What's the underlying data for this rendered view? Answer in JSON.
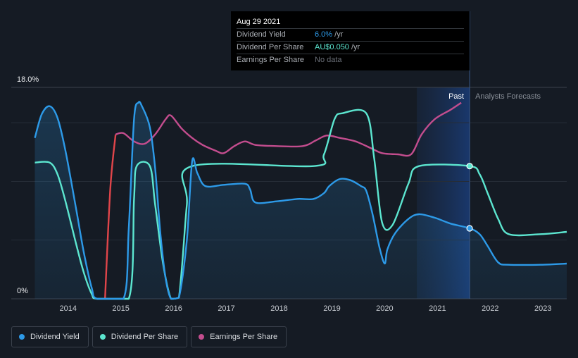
{
  "tooltip": {
    "date": "Aug 29 2021",
    "rows": [
      {
        "label": "Dividend Yield",
        "value": "6.0%",
        "suffix": " /yr",
        "color": "#2d9ae8"
      },
      {
        "label": "Dividend Per Share",
        "value": "AU$0.050",
        "suffix": " /yr",
        "color": "#5ce6d0"
      },
      {
        "label": "Earnings Per Share",
        "value": "No data",
        "suffix": "",
        "color": "#6b7079"
      }
    ]
  },
  "region_labels": {
    "past": "Past",
    "forecast": "Analysts Forecasts"
  },
  "legend": [
    {
      "label": "Dividend Yield",
      "color": "#2d9ae8"
    },
    {
      "label": "Dividend Per Share",
      "color": "#5ce6d0"
    },
    {
      "label": "Earnings Per Share",
      "color": "#c34d8e"
    }
  ],
  "chart_data": {
    "type": "line",
    "x_range": [
      2013.4,
      2023.5
    ],
    "ylim": [
      0,
      18
    ],
    "y_ticks": [
      {
        "value": 0,
        "label": "0%"
      },
      {
        "value": 18,
        "label": "18.0%"
      }
    ],
    "x_ticks": [
      "2014",
      "2015",
      "2016",
      "2017",
      "2018",
      "2019",
      "2020",
      "2021",
      "2022",
      "2023"
    ],
    "forecast_start": 2021.66,
    "past_band_start": 2020.66,
    "grid": true,
    "series": [
      {
        "name": "Dividend Yield",
        "color": "#2d9ae8",
        "fill": true,
        "points": [
          [
            2013.42,
            13.7
          ],
          [
            2013.55,
            15.7
          ],
          [
            2013.7,
            16.4
          ],
          [
            2013.85,
            15.4
          ],
          [
            2014.0,
            12.6
          ],
          [
            2014.2,
            7.7
          ],
          [
            2014.35,
            3.9
          ],
          [
            2014.5,
            0.9
          ],
          [
            2014.6,
            0.0
          ],
          [
            2015.1,
            0.0
          ],
          [
            2015.2,
            6.0
          ],
          [
            2015.3,
            15.3
          ],
          [
            2015.38,
            16.7
          ],
          [
            2015.45,
            16.4
          ],
          [
            2015.6,
            14.6
          ],
          [
            2015.7,
            11.1
          ],
          [
            2015.8,
            5.5
          ],
          [
            2015.9,
            1.7
          ],
          [
            2016.0,
            0.0
          ],
          [
            2016.15,
            0.1
          ],
          [
            2016.3,
            5.0
          ],
          [
            2016.4,
            11.7
          ],
          [
            2016.5,
            10.7
          ],
          [
            2016.65,
            9.6
          ],
          [
            2017.0,
            9.7
          ],
          [
            2017.4,
            9.8
          ],
          [
            2017.5,
            9.3
          ],
          [
            2017.6,
            8.2
          ],
          [
            2018.0,
            8.3
          ],
          [
            2018.4,
            8.5
          ],
          [
            2018.7,
            8.5
          ],
          [
            2018.9,
            9.0
          ],
          [
            2019.0,
            9.6
          ],
          [
            2019.2,
            10.2
          ],
          [
            2019.4,
            10.1
          ],
          [
            2019.6,
            9.6
          ],
          [
            2019.7,
            9.2
          ],
          [
            2019.82,
            7.2
          ],
          [
            2019.95,
            4.4
          ],
          [
            2020.05,
            3.0
          ],
          [
            2020.1,
            4.2
          ],
          [
            2020.25,
            5.6
          ],
          [
            2020.5,
            6.8
          ],
          [
            2020.7,
            7.2
          ],
          [
            2021.0,
            6.9
          ],
          [
            2021.3,
            6.4
          ],
          [
            2021.66,
            6.0
          ],
          [
            2021.85,
            5.5
          ],
          [
            2022.0,
            4.5
          ],
          [
            2022.2,
            3.1
          ],
          [
            2022.4,
            2.9
          ],
          [
            2023.0,
            2.9
          ],
          [
            2023.5,
            3.0
          ]
        ]
      },
      {
        "name": "Dividend Per Share",
        "color": "#5ce6d0",
        "fill": false,
        "points": [
          [
            2013.42,
            11.6
          ],
          [
            2013.7,
            11.6
          ],
          [
            2013.85,
            10.6
          ],
          [
            2014.0,
            8.3
          ],
          [
            2014.2,
            4.7
          ],
          [
            2014.35,
            2.2
          ],
          [
            2014.5,
            0.4
          ],
          [
            2014.6,
            0.0
          ],
          [
            2015.2,
            0.0
          ],
          [
            2015.3,
            8.5
          ],
          [
            2015.35,
            11.3
          ],
          [
            2015.6,
            11.3
          ],
          [
            2015.7,
            8.0
          ],
          [
            2015.85,
            3.0
          ],
          [
            2016.0,
            0.0
          ],
          [
            2016.15,
            0.1
          ],
          [
            2016.3,
            8.0
          ],
          [
            2016.4,
            11.3
          ],
          [
            2018.7,
            11.3
          ],
          [
            2018.9,
            12.3
          ],
          [
            2019.1,
            15.3
          ],
          [
            2019.25,
            15.8
          ],
          [
            2019.7,
            15.8
          ],
          [
            2019.85,
            12.0
          ],
          [
            2020.0,
            6.5
          ],
          [
            2020.2,
            6.3
          ],
          [
            2020.5,
            9.8
          ],
          [
            2020.7,
            11.3
          ],
          [
            2021.66,
            11.3
          ],
          [
            2021.85,
            10.6
          ],
          [
            2022.0,
            9.0
          ],
          [
            2022.2,
            6.8
          ],
          [
            2022.4,
            5.5
          ],
          [
            2023.0,
            5.5
          ],
          [
            2023.5,
            5.7
          ]
        ]
      },
      {
        "name": "Earnings Per Share",
        "color": "#c34d8e",
        "fill": false,
        "points": [
          [
            2014.75,
            0.0
          ],
          [
            2014.85,
            9.4
          ],
          [
            2014.95,
            14.0
          ],
          [
            2015.1,
            14.1
          ],
          [
            2015.3,
            13.4
          ],
          [
            2015.5,
            13.2
          ],
          [
            2015.7,
            14.0
          ],
          [
            2015.9,
            15.3
          ],
          [
            2016.0,
            15.6
          ],
          [
            2016.2,
            14.5
          ],
          [
            2016.4,
            13.7
          ],
          [
            2016.6,
            13.1
          ],
          [
            2016.85,
            12.6
          ],
          [
            2017.0,
            12.4
          ],
          [
            2017.2,
            13.0
          ],
          [
            2017.4,
            13.4
          ],
          [
            2017.6,
            13.1
          ],
          [
            2018.0,
            13.0
          ],
          [
            2018.5,
            13.0
          ],
          [
            2018.75,
            13.5
          ],
          [
            2018.95,
            13.9
          ],
          [
            2019.2,
            13.7
          ],
          [
            2019.5,
            13.4
          ],
          [
            2019.8,
            12.8
          ],
          [
            2020.0,
            12.4
          ],
          [
            2020.3,
            12.3
          ],
          [
            2020.55,
            12.3
          ],
          [
            2020.75,
            14.0
          ],
          [
            2021.0,
            15.3
          ],
          [
            2021.3,
            16.1
          ],
          [
            2021.5,
            16.7
          ]
        ]
      }
    ],
    "highlight_points": [
      {
        "series": "Dividend Yield",
        "x": 2021.66,
        "y": 6.0
      },
      {
        "series": "Dividend Per Share",
        "x": 2021.66,
        "y": 11.3
      }
    ]
  }
}
